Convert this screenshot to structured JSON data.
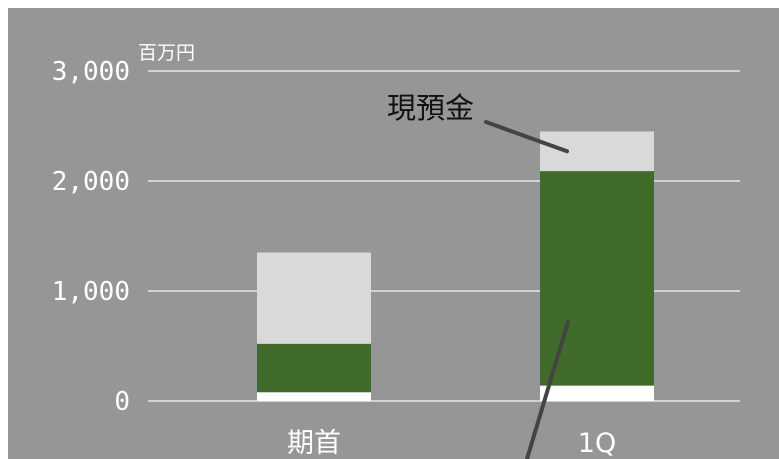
{
  "chart_data": {
    "type": "bar",
    "stacked": true,
    "categories": [
      "期首",
      "1Q"
    ],
    "series": [
      {
        "values": [
          80,
          140
        ],
        "color": "#ffffff"
      },
      {
        "values": [
          440,
          1950
        ],
        "color": "#416b2a"
      },
      {
        "values": [
          830,
          360
        ],
        "name": "現預金",
        "color": "#d9d9d9"
      }
    ],
    "unit": "百万円",
    "ylim": [
      0,
      3000
    ],
    "yticks": [
      0,
      1000,
      2000,
      3000
    ],
    "ytick_labels": [
      "0",
      "1,000",
      "2,000",
      "3,000"
    ],
    "grid": true,
    "annotations": [
      {
        "text": "現預金",
        "target_category": "1Q",
        "target_series": 2
      }
    ],
    "background": "#969696"
  }
}
